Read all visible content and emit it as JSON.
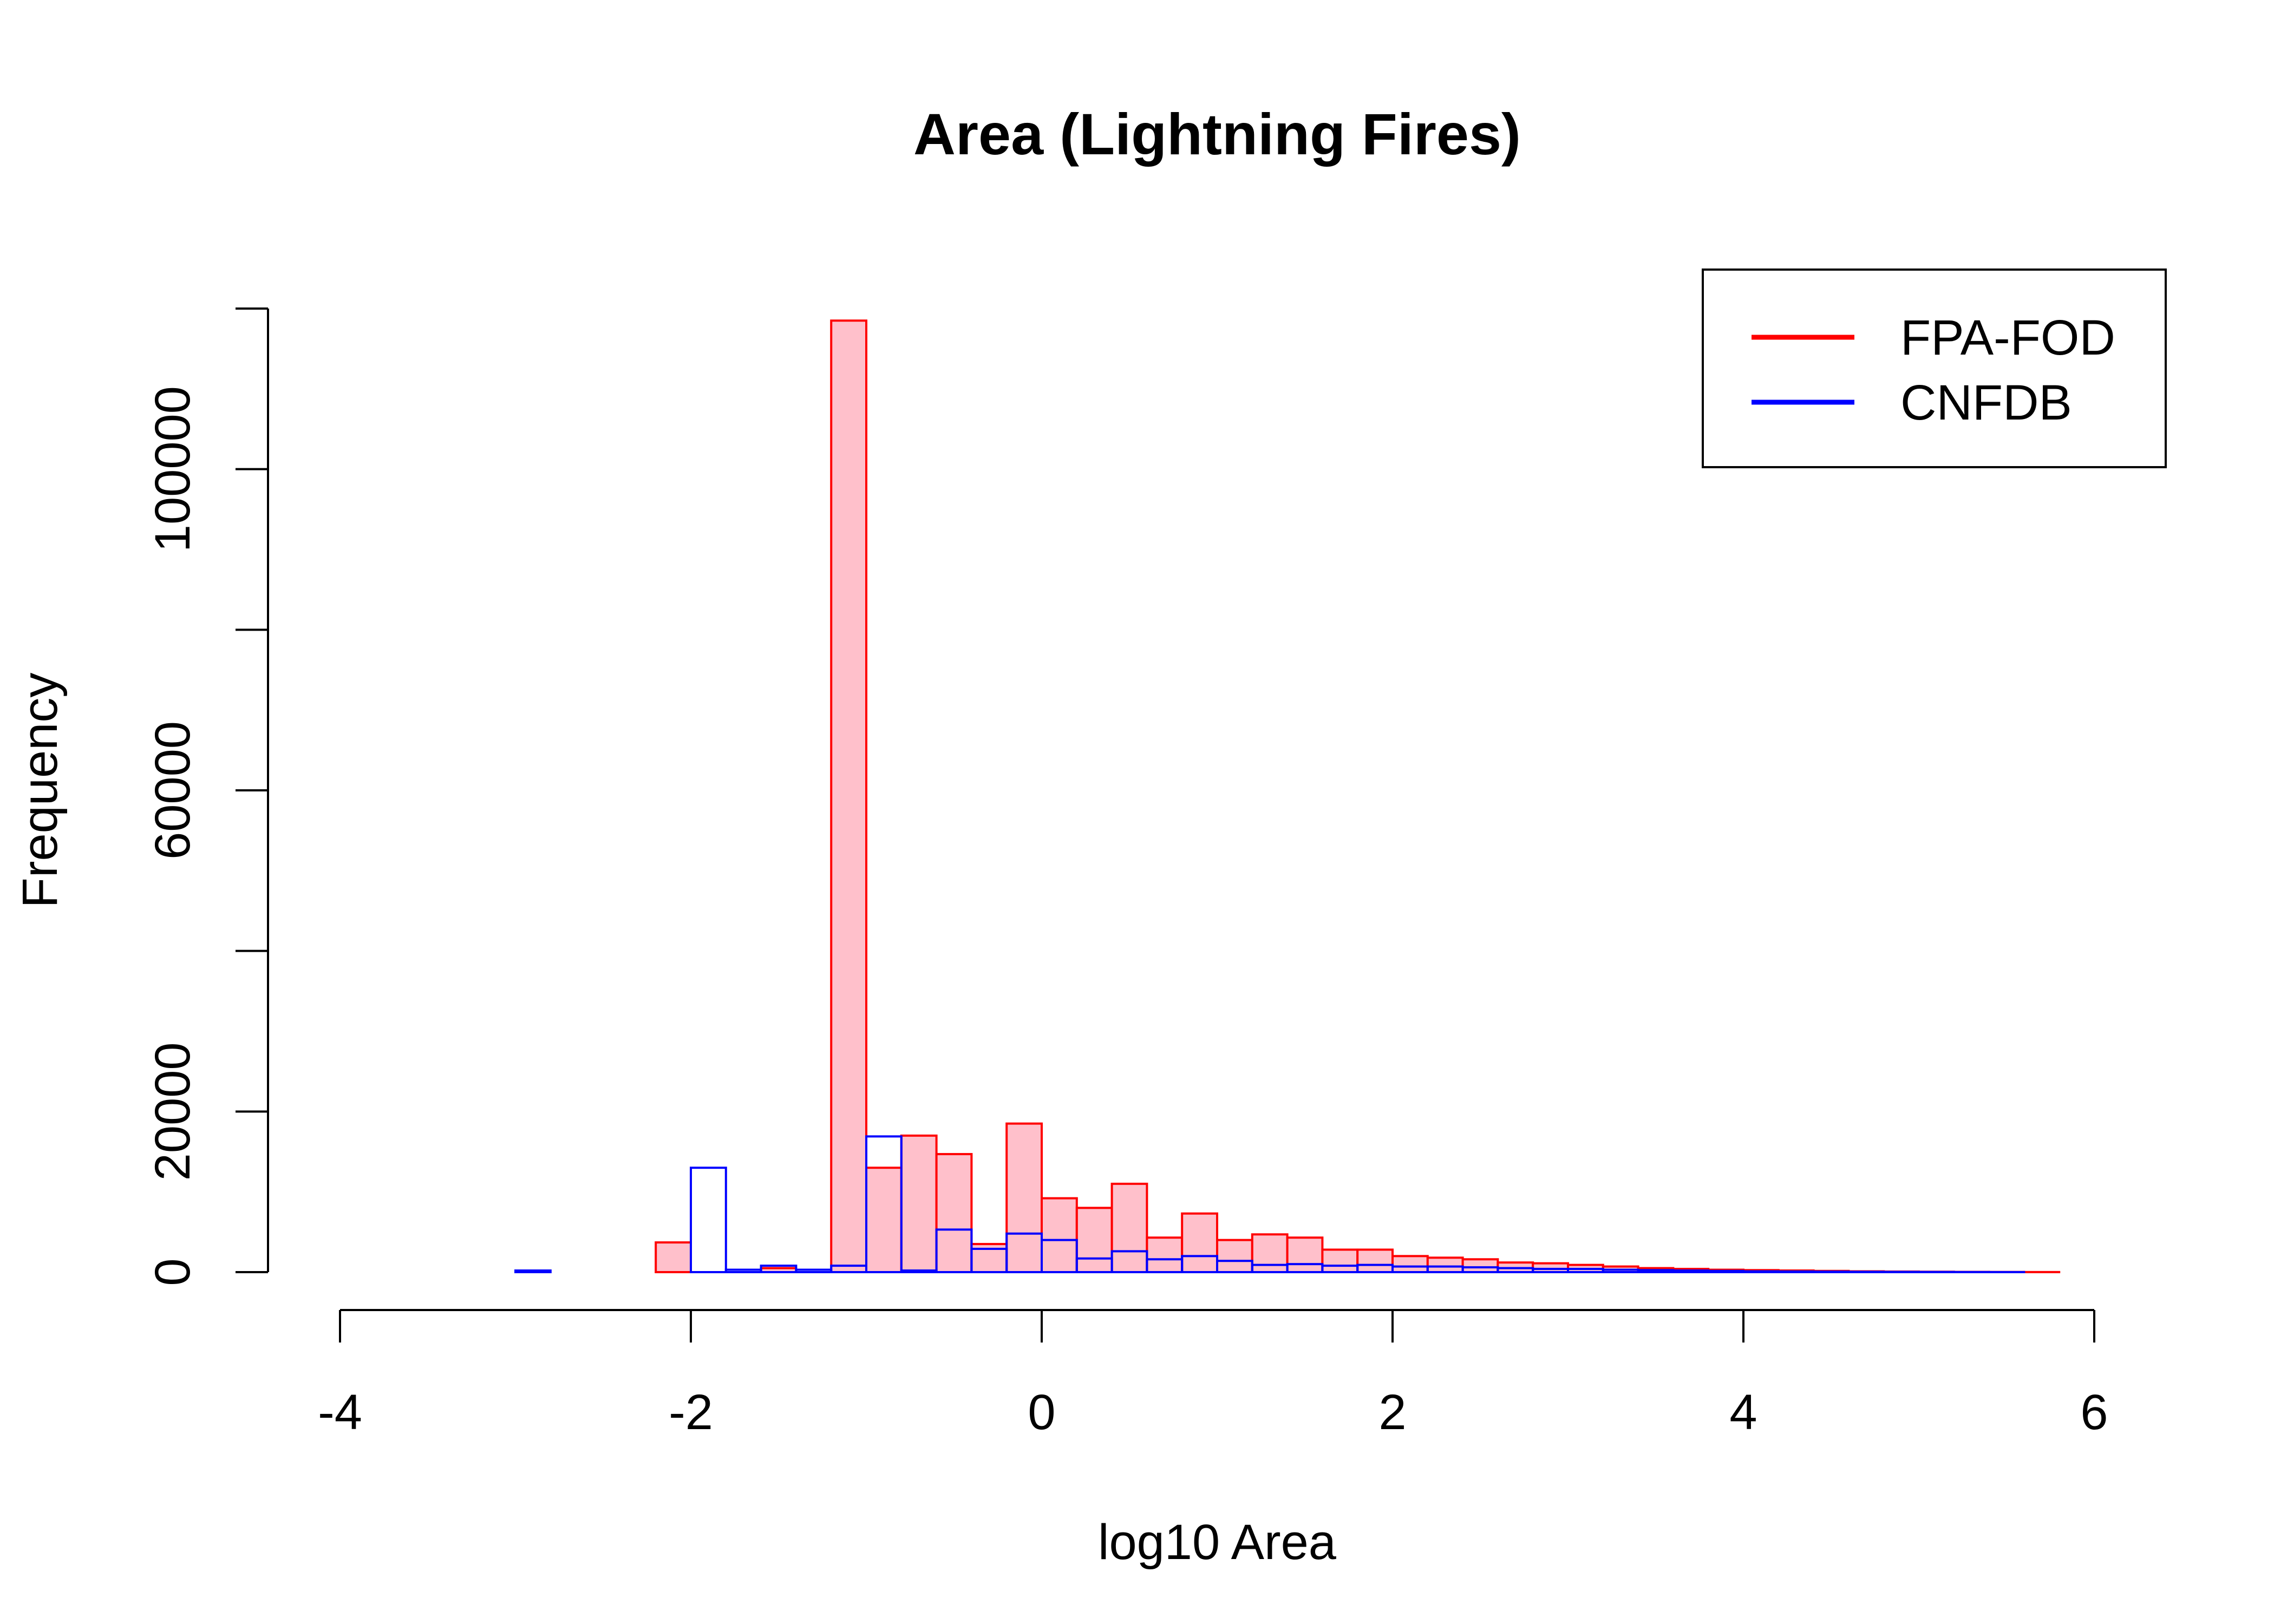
{
  "chart_data": {
    "type": "bar",
    "title": "Area (Lightning Fires)",
    "xlabel": "log10 Area",
    "ylabel": "Frequency",
    "xlim": [
      -4.2,
      5.8
    ],
    "ylim": [
      0,
      120000
    ],
    "xticks": [
      -4,
      -2,
      0,
      2,
      4,
      6
    ],
    "yticks": [
      0,
      20000,
      40000,
      60000,
      80000,
      100000
    ],
    "ytick_labels": [
      "0",
      "20000",
      "",
      "60000",
      "",
      "100000"
    ],
    "bin_width": 0.2,
    "grid": false,
    "legend": {
      "position": "top-right",
      "entries": [
        {
          "label": "FPA-FOD",
          "color": "#ff0000"
        },
        {
          "label": "CNFDB",
          "color": "#0000ff"
        }
      ]
    },
    "series": [
      {
        "name": "FPA-FOD",
        "stroke": "#ff0000",
        "fill": "#ffc0cb",
        "x_start": -4.2,
        "values": [
          0,
          0,
          0,
          0,
          0,
          0,
          0,
          0,
          0,
          0,
          3700,
          0,
          0,
          500,
          0,
          118500,
          13000,
          17000,
          14700,
          3500,
          18500,
          9200,
          8000,
          11000,
          4300,
          7300,
          4000,
          4700,
          4300,
          2800,
          2800,
          2000,
          1800,
          1600,
          1200,
          1100,
          900,
          700,
          500,
          400,
          300,
          250,
          200,
          150,
          100,
          70,
          50,
          30,
          20,
          10
        ]
      },
      {
        "name": "CNFDB",
        "stroke": "#0000ff",
        "fill": "none",
        "x_start": -3.2,
        "values": [
          0,
          200,
          0,
          0,
          0,
          0,
          13000,
          300,
          800,
          300,
          800,
          16900,
          200,
          5300,
          2900,
          4800,
          4000,
          1700,
          2600,
          1600,
          2000,
          1400,
          900,
          1000,
          800,
          900,
          700,
          700,
          600,
          500,
          400,
          400,
          300,
          250,
          200,
          150,
          100,
          80,
          60,
          40,
          30,
          20,
          10,
          5,
          0,
          0
        ]
      }
    ]
  }
}
